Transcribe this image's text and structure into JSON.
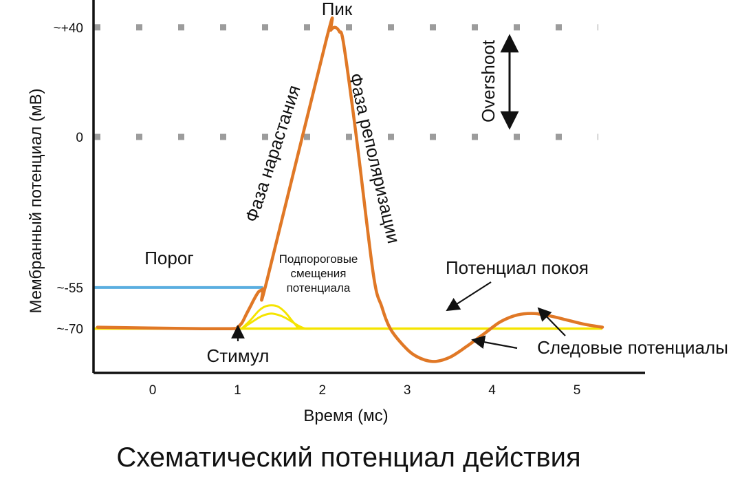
{
  "chart_data": {
    "type": "line",
    "title": "Схематический потенциал действия",
    "xlabel": "Время (мс)",
    "ylabel": "Мембранный потенциал (мВ)",
    "x_ticks": [
      0,
      1,
      2,
      3,
      4,
      5
    ],
    "y_ticks": [
      {
        "value": 40,
        "label": "~+40"
      },
      {
        "value": 0,
        "label": "0"
      },
      {
        "value": -55,
        "label": "~-55"
      },
      {
        "value": -70,
        "label": "~-70"
      }
    ],
    "xlim": [
      -0.7,
      5.8
    ],
    "ylim": [
      -90,
      50
    ],
    "dotted_levels": [
      40,
      0
    ],
    "threshold": {
      "value": -55,
      "x_start": -0.7,
      "x_end": 1.3,
      "color": "#5aaee0"
    },
    "resting": {
      "value": -70,
      "x_start": -0.7,
      "x_end": 5.3,
      "color": "#f5e400"
    },
    "series": [
      {
        "color": "#e07826",
        "x": [
          -0.65,
          0.5,
          0.95,
          1.0,
          1.05,
          1.1,
          1.15,
          1.2,
          1.25,
          1.3,
          1.35,
          2.05,
          2.1,
          2.15,
          2.2,
          2.25,
          2.4,
          2.6,
          2.7,
          2.8,
          2.95,
          3.1,
          3.3,
          3.5,
          3.7,
          3.9,
          4.1,
          4.3,
          4.5,
          4.7,
          4.9,
          5.1,
          5.3
        ],
        "y": [
          -69.5,
          -70,
          -70,
          -69.5,
          -68,
          -65,
          -62,
          -59,
          -56.5,
          -55.5,
          -52,
          36,
          39,
          40,
          38.5,
          34,
          0,
          -50,
          -62,
          -70,
          -76,
          -80,
          -82,
          -80.5,
          -76.5,
          -72,
          -67.5,
          -65,
          -64.5,
          -65.5,
          -67,
          -68.5,
          -69.5
        ]
      },
      {
        "color": "#f5e400",
        "x": [
          1.05,
          1.15,
          1.25,
          1.32,
          1.4,
          1.48,
          1.56,
          1.64,
          1.72
        ],
        "y": [
          -70,
          -67,
          -63.5,
          -62,
          -61.5,
          -62,
          -64,
          -67,
          -70
        ]
      },
      {
        "color": "#f5e400",
        "x": [
          1.05,
          1.15,
          1.25,
          1.32,
          1.4,
          1.48,
          1.56,
          1.64,
          1.72,
          1.8,
          1.88
        ],
        "y": [
          -70,
          -68,
          -66,
          -65,
          -64.5,
          -65,
          -66,
          -67.5,
          -69,
          -70,
          -70
        ]
      }
    ],
    "annotations": {
      "peak": "Пик",
      "overshoot": "Overshoot",
      "rising_phase": "Фаза нарастания",
      "repolarization_phase": "Фаза реполяризации",
      "threshold": "Порог",
      "subthreshold_line1": "Подпороговые",
      "subthreshold_line2": "смещения",
      "subthreshold_line3": "потенциала",
      "resting_potential": "Потенциал покоя",
      "trace_potentials": "Следовые потенциалы",
      "stimulus": "Стимул"
    },
    "grid": false,
    "legend": "none"
  }
}
